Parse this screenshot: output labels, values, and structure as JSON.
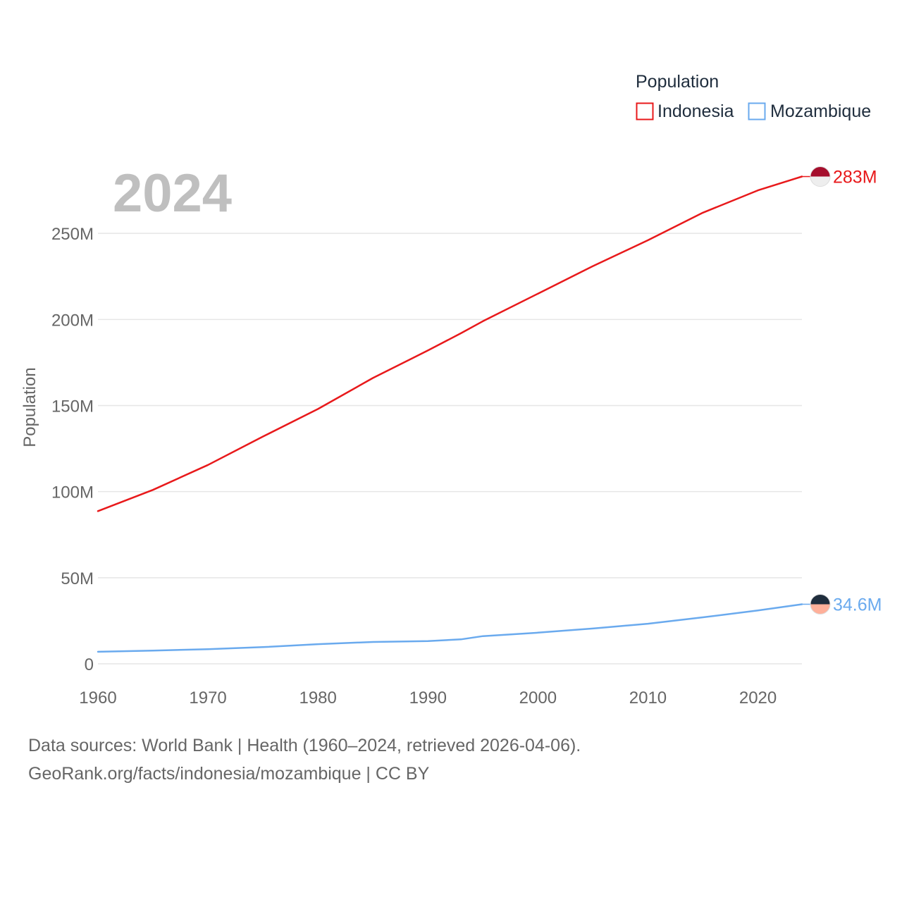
{
  "chart_data": {
    "type": "line",
    "x": [
      1960,
      1965,
      1970,
      1975,
      1980,
      1985,
      1990,
      1993,
      1995,
      2000,
      2005,
      2010,
      2015,
      2020,
      2024
    ],
    "series": [
      {
        "name": "Indonesia",
        "color": "#e8191b",
        "values": [
          88.7,
          101,
          115.5,
          132,
          148,
          166,
          182,
          192,
          199,
          215,
          231,
          246,
          262,
          275,
          283
        ],
        "end_label": "283M",
        "flag_top": "#a50e2d",
        "flag_bottom": "#eeeeee"
      },
      {
        "name": "Mozambique",
        "color": "#6aaaee",
        "values": [
          7,
          7.7,
          8.5,
          9.7,
          11.4,
          12.7,
          13.2,
          14.2,
          16.1,
          18.1,
          20.5,
          23.3,
          27,
          31,
          34.6
        ],
        "end_label": "34.6M",
        "flag_top": "#1f2d3d",
        "flag_bottom": "#ffb09a"
      }
    ],
    "ylim": [
      0,
      300
    ],
    "yticks": [
      0,
      50,
      100,
      150,
      200,
      250
    ],
    "ytick_labels": [
      "0",
      "50M",
      "100M",
      "150M",
      "200M",
      "250M"
    ],
    "xlim": [
      1960,
      2024
    ],
    "xticks": [
      1960,
      1970,
      1980,
      1990,
      2000,
      2010,
      2020
    ],
    "xtick_labels": [
      "1960",
      "1970",
      "1980",
      "1990",
      "2000",
      "2010",
      "2020"
    ],
    "ylabel": "Population",
    "year_label": "2024",
    "legend_title": "Population",
    "legend_position": "top-right",
    "grid": true
  },
  "footer": {
    "line1": "Data sources: World Bank | Health (1960–2024, retrieved 2026-04-06).",
    "line2": "GeoRank.org/facts/indonesia/mozambique | CC BY"
  }
}
